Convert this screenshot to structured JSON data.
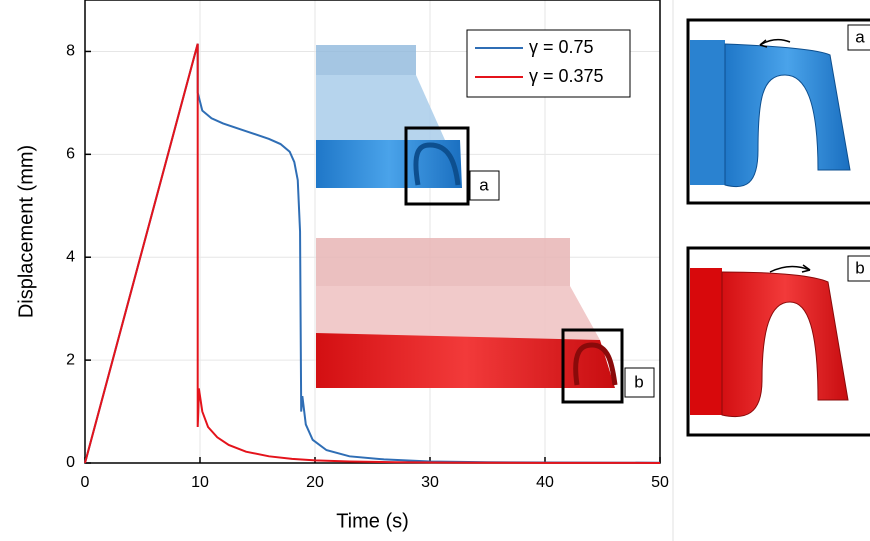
{
  "chart_data": {
    "type": "line",
    "xlabel": "Time (s)",
    "ylabel": "Displacement (mm)",
    "xlim": [
      0,
      50
    ],
    "xticks": [
      0,
      10,
      20,
      30,
      40,
      50
    ],
    "ylim": [
      0,
      9
    ],
    "yticks": [
      0,
      2,
      4,
      6,
      8
    ],
    "grid": true,
    "legend": "upper right",
    "series": [
      {
        "name": "γ = 0.75",
        "color": "#2f6eb5",
        "x": [
          0,
          9.8,
          9.8,
          10.2,
          11,
          12,
          14,
          16,
          17,
          17.8,
          18.2,
          18.5,
          18.7,
          18.8,
          18.9,
          19.2,
          19.8,
          21,
          23,
          26,
          30,
          35,
          40,
          50
        ],
        "values": [
          0,
          8.15,
          7.2,
          6.85,
          6.7,
          6.6,
          6.45,
          6.3,
          6.2,
          6.05,
          5.85,
          5.5,
          4.5,
          1.0,
          1.3,
          0.75,
          0.45,
          0.25,
          0.13,
          0.07,
          0.03,
          0.015,
          0.01,
          0.005
        ]
      },
      {
        "name": "γ = 0.375",
        "color": "#e4131b",
        "x": [
          0,
          9.8,
          9.8,
          9.85,
          9.9,
          10.2,
          10.7,
          11.5,
          12.5,
          14,
          16,
          18,
          20,
          23,
          27,
          32,
          40,
          50
        ],
        "values": [
          0,
          8.15,
          0.7,
          1.0,
          1.45,
          1.0,
          0.7,
          0.5,
          0.35,
          0.22,
          0.13,
          0.08,
          0.05,
          0.03,
          0.015,
          0.008,
          0.003,
          0.001
        ]
      }
    ],
    "inset_labels": [
      "a",
      "b"
    ],
    "panel_labels": [
      "a",
      "b"
    ]
  }
}
